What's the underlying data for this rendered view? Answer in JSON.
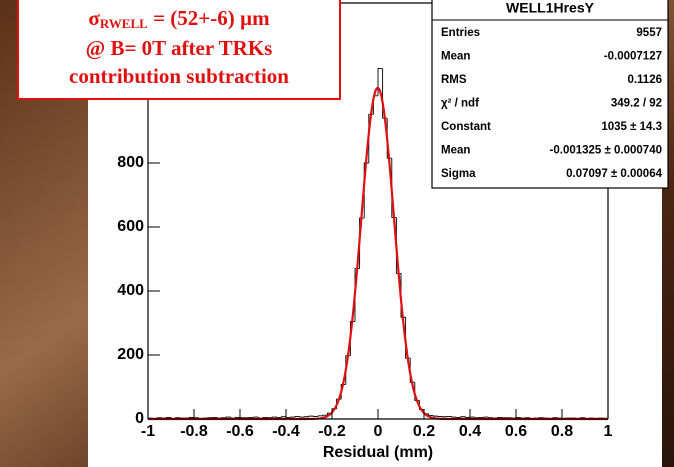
{
  "chart_data": {
    "type": "histogram",
    "bins": [
      -1,
      -0.98,
      -0.96,
      -0.94,
      -0.92,
      -0.9,
      -0.88,
      -0.86,
      -0.84,
      -0.82,
      -0.8,
      -0.78,
      -0.76,
      -0.74,
      -0.72,
      -0.7,
      -0.68,
      -0.66,
      -0.64,
      -0.62,
      -0.6,
      -0.58,
      -0.56,
      -0.54,
      -0.52,
      -0.5,
      -0.48,
      -0.46,
      -0.44,
      -0.42,
      -0.4,
      -0.38,
      -0.36,
      -0.34,
      -0.32,
      -0.3,
      -0.28,
      -0.26,
      -0.24,
      -0.22,
      -0.2,
      -0.18,
      -0.16,
      -0.14,
      -0.12,
      -0.1,
      -0.08,
      -0.06,
      -0.04,
      -0.02,
      0,
      0.02,
      0.04,
      0.06,
      0.08,
      0.1,
      0.12,
      0.14,
      0.16,
      0.18,
      0.2,
      0.22,
      0.24,
      0.26,
      0.28,
      0.3,
      0.32,
      0.34,
      0.36,
      0.38,
      0.4,
      0.42,
      0.44,
      0.46,
      0.48,
      0.5,
      0.52,
      0.54,
      0.56,
      0.58,
      0.6,
      0.62,
      0.64,
      0.66,
      0.68,
      0.7,
      0.72,
      0.74,
      0.76,
      0.78,
      0.8,
      0.82,
      0.84,
      0.86,
      0.88,
      0.9,
      0.92,
      0.94,
      0.96,
      0.98,
      1
    ],
    "values": [
      3,
      2,
      4,
      3,
      5,
      2,
      4,
      3,
      3,
      5,
      4,
      2,
      3,
      4,
      5,
      3,
      4,
      6,
      3,
      5,
      4,
      4,
      5,
      6,
      3,
      5,
      4,
      6,
      5,
      7,
      5,
      6,
      8,
      6,
      7,
      9,
      8,
      10,
      12,
      18,
      32,
      62,
      108,
      198,
      305,
      470,
      628,
      800,
      952,
      1010,
      1095,
      940,
      815,
      630,
      455,
      318,
      190,
      115,
      58,
      30,
      16,
      11,
      9,
      8,
      7,
      8,
      6,
      5,
      7,
      5,
      6,
      4,
      5,
      6,
      4,
      3,
      5,
      4,
      4,
      3,
      5,
      3,
      4,
      2,
      3,
      4,
      3,
      2,
      4,
      3,
      2,
      3,
      3,
      2,
      4,
      2,
      3,
      2,
      3,
      2
    ],
    "color": "#000000",
    "fit": {
      "constant": 1035,
      "mean": -0.001325,
      "sigma": 0.07097,
      "color": "#e01010"
    },
    "xlabel": "Residual (mm)",
    "xlim": [
      -1,
      1
    ],
    "xticks": [
      -1,
      -0.8,
      -0.6,
      -0.4,
      -0.2,
      0,
      0.2,
      0.4,
      0.6,
      0.8,
      1
    ],
    "ylim": [
      0,
      1300
    ],
    "yticks": [
      0,
      200,
      400,
      600,
      800
    ],
    "stats": {
      "title": "WELL1HresY",
      "rows": [
        {
          "name": "Entries",
          "value": "9557"
        },
        {
          "name": "Mean",
          "value": "-0.0007127"
        },
        {
          "name": "RMS",
          "value": "0.1126"
        },
        {
          "name": "χ² / ndf",
          "value": "349.2 / 92"
        },
        {
          "name": "Constant",
          "value": "1035 ± 14.3"
        },
        {
          "name": "Mean",
          "value": "-0.001325 ± 0.000740"
        },
        {
          "name": "Sigma",
          "value": "0.07097 ± 0.00064"
        }
      ]
    },
    "annotation": {
      "symbol": "σ",
      "subscript": "RWELL",
      "line1_rest": " = (52+-6) µm",
      "line2": "@ B= 0T after TRKs",
      "line3": "contribution subtraction"
    }
  }
}
